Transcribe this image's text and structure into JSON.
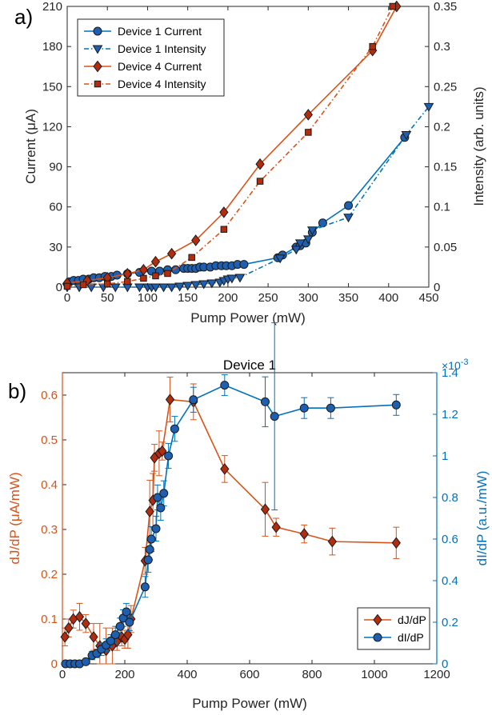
{
  "colors": {
    "blue": "#0072BD",
    "orange": "#D95319",
    "marker_blue": "#1F5FB0",
    "marker_red": "#B22D0F",
    "axis": "#262626"
  },
  "chart_data": [
    {
      "panel_label": "a)",
      "type": "line",
      "title": "",
      "xlabel": "Pump Power (mW)",
      "ylabel": "Current (μA)",
      "ylabel_right": "Intensity (arb. units)",
      "xlim": [
        0,
        450
      ],
      "ylim": [
        0,
        210
      ],
      "ylim_right": [
        0,
        0.35
      ],
      "xticks": [
        "0",
        "50",
        "100",
        "150",
        "200",
        "250",
        "300",
        "350",
        "400",
        "450"
      ],
      "yticks": [
        "0",
        "30",
        "60",
        "90",
        "120",
        "150",
        "180",
        "210"
      ],
      "yticks_right": [
        "0",
        "0.05",
        "0.1",
        "0.15",
        "0.2",
        "0.25",
        "0.3",
        "0.35"
      ],
      "legend_position": "top-left",
      "series": [
        {
          "name": "Device 1 Current",
          "axis": "left",
          "color": "blue",
          "line": "solid",
          "marker": "circle",
          "x": [
            3,
            8,
            14,
            20,
            27,
            33,
            40,
            47,
            55,
            62,
            75,
            90,
            105,
            115,
            125,
            135,
            145,
            150,
            155,
            160,
            165,
            170,
            178,
            185,
            192,
            198,
            205,
            212,
            220,
            262,
            268,
            285,
            290,
            297,
            305,
            318,
            350,
            420
          ],
          "y": [
            4,
            5,
            5,
            6,
            6,
            7,
            7,
            8,
            8,
            9,
            10,
            11,
            12,
            12,
            13,
            13,
            14,
            14,
            14,
            14,
            15,
            15,
            15,
            16,
            16,
            16,
            16,
            17,
            17,
            22,
            24,
            30,
            31,
            33,
            41,
            48,
            61,
            112
          ]
        },
        {
          "name": "Device 1 Intensity",
          "axis": "right",
          "color": "blue",
          "line": "dashdot",
          "marker": "triangle-down",
          "x": [
            0,
            15,
            30,
            45,
            60,
            75,
            90,
            100,
            105,
            110,
            120,
            130,
            140,
            150,
            160,
            170,
            180,
            190,
            195,
            200,
            205,
            215,
            265,
            285,
            290,
            300,
            305,
            350,
            422,
            450
          ],
          "y": [
            0,
            0,
            0,
            0,
            0,
            0,
            0,
            0,
            0,
            0,
            0,
            0,
            0.001,
            0.002,
            0.003,
            0.004,
            0.005,
            0.006,
            0.008,
            0.01,
            0.011,
            0.012,
            0.036,
            0.047,
            0.055,
            0.06,
            0.071,
            0.087,
            0.19,
            0.225
          ]
        },
        {
          "name": "Device 4 Current",
          "axis": "left",
          "color": "orange",
          "line": "solid",
          "marker": "diamond",
          "x": [
            0,
            25,
            50,
            75,
            95,
            110,
            130,
            160,
            195,
            240,
            300,
            380,
            410
          ],
          "y": [
            3,
            5,
            7,
            10,
            13,
            19,
            25,
            35,
            56,
            92,
            129,
            177,
            210
          ]
        },
        {
          "name": "Device 4 Intensity",
          "axis": "right",
          "color": "orange",
          "line": "dashdot",
          "marker": "square",
          "x": [
            0,
            20,
            50,
            75,
            95,
            110,
            125,
            155,
            195,
            240,
            300,
            380,
            405
          ],
          "y": [
            0.001,
            0.003,
            0.004,
            0.007,
            0.011,
            0.014,
            0.017,
            0.037,
            0.072,
            0.132,
            0.193,
            0.3,
            0.35
          ]
        }
      ]
    },
    {
      "panel_label": "b)",
      "type": "line",
      "title": "Device 1",
      "xlabel": "Pump Power (mW)",
      "ylabel": "dJ/dP (μA/mW)",
      "ylabel_right": "dI/dP (a.u./mW)",
      "right_exponent": "×10",
      "right_exponent_power": "-3",
      "xlim": [
        0,
        1200
      ],
      "ylim": [
        0,
        0.65
      ],
      "ylim_right": [
        0,
        1.4
      ],
      "xticks": [
        "0",
        "200",
        "400",
        "600",
        "800",
        "1000",
        "1200"
      ],
      "yticks": [
        "0",
        "0.1",
        "0.2",
        "0.3",
        "0.4",
        "0.5",
        "0.6"
      ],
      "yticks_right": [
        "0",
        "0.2",
        "0.4",
        "0.6",
        "0.8",
        "1",
        "1.2",
        "1.4"
      ],
      "legend_position": "bottom-right",
      "series": [
        {
          "name": "dJ/dP",
          "axis": "left",
          "color": "orange",
          "marker": "diamond",
          "x": [
            8,
            20,
            35,
            55,
            75,
            100,
            120,
            140,
            160,
            175,
            190,
            200,
            210,
            220,
            265,
            280,
            290,
            295,
            310,
            320,
            345,
            420,
            520,
            650,
            685,
            775,
            865,
            1070
          ],
          "y": [
            0.06,
            0.08,
            0.1,
            0.105,
            0.09,
            0.06,
            0.04,
            0.03,
            0.04,
            0.05,
            0.06,
            0.055,
            0.065,
            0.1,
            0.23,
            0.34,
            0.365,
            0.46,
            0.47,
            0.475,
            0.59,
            0.585,
            0.435,
            0.345,
            0.305,
            0.29,
            0.273,
            0.27
          ],
          "err": [
            0.02,
            0.02,
            0.02,
            0.03,
            0.02,
            0.03,
            0.05,
            0.05,
            0.04,
            0.02,
            0.02,
            0.02,
            0.03,
            0.03,
            0.03,
            0.07,
            0.06,
            0.03,
            0.05,
            0.02,
            0.05,
            0.04,
            0.03,
            0.06,
            0.02,
            0.02,
            0.03,
            0.035
          ]
        },
        {
          "name": "dI/dP",
          "axis": "right",
          "color": "blue",
          "marker": "circle",
          "x": [
            10,
            25,
            40,
            55,
            75,
            95,
            110,
            125,
            140,
            155,
            170,
            185,
            195,
            205,
            215,
            265,
            275,
            280,
            285,
            300,
            305,
            315,
            325,
            340,
            360,
            420,
            520,
            650,
            680,
            775,
            860,
            1070
          ],
          "y": [
            0,
            0,
            0,
            0,
            0.01,
            0.04,
            0.05,
            0.07,
            0.09,
            0.11,
            0.14,
            0.18,
            0.22,
            0.25,
            0.2,
            0.37,
            0.5,
            0.55,
            0.6,
            0.65,
            0.8,
            0.75,
            0.82,
            1.0,
            1.13,
            1.27,
            1.34,
            1.26,
            1.19,
            1.23,
            1.23,
            1.245
          ],
          "err": [
            0,
            0,
            0,
            0,
            0.01,
            0.02,
            0.02,
            0.03,
            0.03,
            0.03,
            0.04,
            0.04,
            0.04,
            0.04,
            0.04,
            0.05,
            0.06,
            0.05,
            0.06,
            0.06,
            0.06,
            0.06,
            0.06,
            0.06,
            0.06,
            0.06,
            0.05,
            0.12,
            0.45,
            0.05,
            0.05,
            0.05
          ]
        }
      ]
    }
  ]
}
